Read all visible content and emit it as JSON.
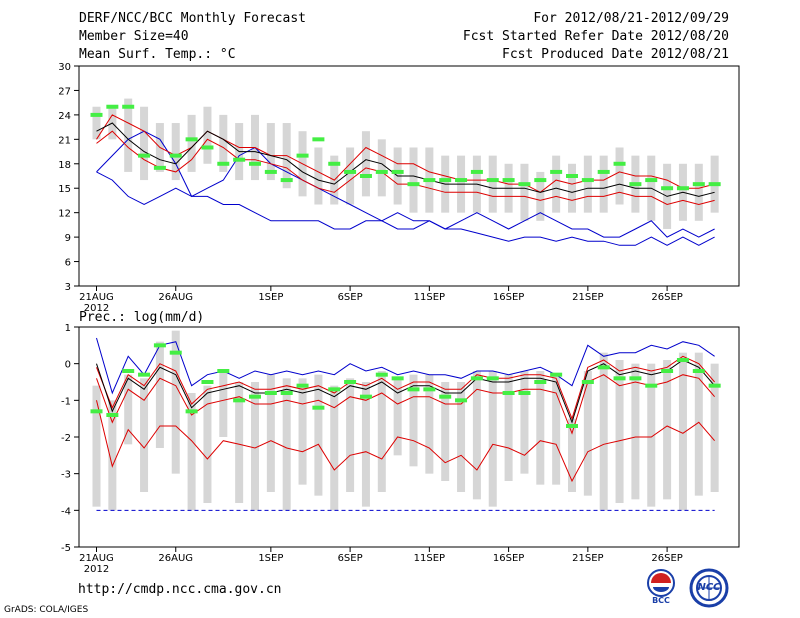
{
  "header": {
    "title": "DERF/NCC/BCC Monthly Forecast",
    "member": "Member Size=40",
    "variable": "Mean Surf. Temp.: °C",
    "for_range": "For 2012/08/21-2012/09/29",
    "start": "Fcst Started Refer Date 2012/08/20",
    "produced": "Fcst Produced Date 2012/08/21"
  },
  "footer": {
    "url": "http://cmdp.ncc.cma.gov.cn",
    "grads": "GrADS: COLA/IGES",
    "logo_bcc": "BCC",
    "logo_ncc": "NCC"
  },
  "colors": {
    "max": "#0000cc",
    "pct": "#dd0000",
    "mean": "#000000",
    "obs": "#44ee44",
    "box": "#d6d6d6"
  },
  "chart_data": [
    {
      "type": "ensemble-box",
      "title": "Mean Surf. Temp.: °C",
      "ylim": [
        3,
        30
      ],
      "yticks": [
        3,
        6,
        9,
        12,
        15,
        18,
        21,
        24,
        27,
        30
      ],
      "xtick_labels": [
        "21AUG",
        "26AUG",
        "1SEP",
        "6SEP",
        "11SEP",
        "16SEP",
        "21SEP",
        "26SEP"
      ],
      "xtick_days": [
        0,
        5,
        11,
        16,
        21,
        26,
        31,
        36
      ],
      "year_label": "2012",
      "series": {
        "max": [
          17,
          19,
          21,
          22,
          21,
          18,
          14,
          15,
          16,
          19,
          20,
          18,
          17,
          16,
          15,
          14,
          13,
          12,
          11,
          12,
          11,
          11,
          10,
          11,
          12,
          11,
          10,
          11,
          12,
          11,
          10,
          10,
          9,
          9,
          10,
          11,
          9,
          10,
          9,
          10
        ],
        "upper": [
          21,
          24,
          23,
          22,
          20,
          19,
          20,
          22,
          21,
          20,
          20,
          19,
          19,
          18,
          17,
          16,
          18,
          20,
          19,
          18,
          18,
          17,
          16.5,
          16,
          16,
          16,
          15.5,
          15.5,
          14.5,
          16,
          15.5,
          16,
          16,
          17,
          16.5,
          16.5,
          16,
          15,
          15,
          15.5
        ],
        "mean": [
          22,
          23,
          21,
          19.5,
          18.5,
          18,
          20,
          22,
          21,
          19.5,
          19.5,
          19,
          18.5,
          17,
          16,
          15.5,
          17,
          18.5,
          18,
          16.5,
          16.5,
          16,
          15.5,
          15.5,
          15.5,
          15,
          15,
          15,
          14.5,
          15,
          14.5,
          15,
          15,
          15.5,
          15,
          15,
          14,
          14.5,
          14,
          14.5
        ],
        "lower": [
          20.5,
          22,
          20,
          18.5,
          17.5,
          17,
          18.5,
          21,
          20,
          18.5,
          18.5,
          18,
          17.5,
          16,
          15,
          14.5,
          16,
          17.5,
          17,
          15.5,
          15.5,
          15,
          14.5,
          14.5,
          14.5,
          14,
          14,
          14,
          13.5,
          14,
          13.5,
          14,
          14,
          14.5,
          14,
          14,
          13,
          13.5,
          13,
          13.5
        ],
        "min": [
          17,
          16,
          14,
          13,
          14,
          15,
          14,
          14,
          13,
          13,
          12,
          11,
          11,
          11,
          11,
          10,
          10,
          11,
          11,
          10,
          10,
          11,
          10,
          10,
          9.5,
          9,
          8.5,
          9,
          9,
          8.5,
          9,
          8.5,
          8.5,
          8,
          8,
          9,
          8,
          9,
          8,
          9
        ],
        "box_top": [
          25,
          25,
          26,
          25,
          23,
          23,
          24,
          25,
          24,
          23,
          24,
          23,
          23,
          22,
          20,
          19,
          20,
          22,
          21,
          20,
          20,
          20,
          19,
          19,
          19,
          19,
          18,
          18,
          17,
          19,
          18,
          19,
          19,
          20,
          19,
          19,
          18,
          18,
          18,
          19
        ],
        "box_bottom": [
          21,
          21,
          17,
          16,
          17,
          16,
          17,
          18,
          17,
          16,
          16,
          16,
          15,
          14,
          13,
          13,
          13,
          14,
          14,
          13,
          12,
          12,
          12,
          12,
          12,
          12,
          12,
          11,
          11,
          12,
          12,
          12,
          12,
          13,
          12,
          11,
          10,
          11,
          11,
          12
        ],
        "observed": [
          24,
          25,
          25,
          19,
          17.5,
          19,
          21,
          20,
          18,
          18.5,
          18,
          17,
          16,
          19,
          21,
          18,
          17,
          16.5,
          17,
          17,
          15.5,
          16,
          16,
          16,
          17,
          16,
          16,
          15.5,
          16,
          17,
          16.5,
          16,
          17,
          18,
          15.5,
          16,
          15,
          15,
          15.5,
          15.5
        ]
      }
    },
    {
      "type": "ensemble-box",
      "title": "Prec.: log(mm/d)",
      "ylim": [
        -5,
        1
      ],
      "yticks": [
        -5,
        -4,
        -3,
        -2,
        -1,
        0,
        1
      ],
      "xtick_labels": [
        "21AUG",
        "26AUG",
        "1SEP",
        "6SEP",
        "11SEP",
        "16SEP",
        "21SEP",
        "26SEP"
      ],
      "xtick_days": [
        0,
        5,
        11,
        16,
        21,
        26,
        31,
        36
      ],
      "year_label": "2012",
      "series": {
        "max": [
          0.7,
          -0.8,
          0.2,
          -0.3,
          0.5,
          0.6,
          -0.6,
          -0.3,
          -0.2,
          -0.4,
          -0.2,
          -0.3,
          -0.2,
          -0.3,
          -0.2,
          -0.3,
          0.0,
          -0.2,
          -0.1,
          -0.3,
          -0.2,
          -0.3,
          -0.3,
          -0.4,
          -0.2,
          -0.2,
          -0.3,
          -0.2,
          -0.1,
          -0.3,
          -0.6,
          0.5,
          0.2,
          0.3,
          0.3,
          0.5,
          0.4,
          0.6,
          0.5,
          0.2
        ],
        "mean": [
          0.0,
          -1.3,
          -0.4,
          -0.7,
          -0.1,
          -0.3,
          -1.2,
          -0.8,
          -0.7,
          -0.6,
          -0.8,
          -0.8,
          -0.7,
          -0.8,
          -0.7,
          -0.9,
          -0.6,
          -0.7,
          -0.5,
          -0.8,
          -0.6,
          -0.6,
          -0.8,
          -0.8,
          -0.4,
          -0.5,
          -0.5,
          -0.4,
          -0.4,
          -0.5,
          -1.6,
          -0.2,
          0.0,
          -0.3,
          -0.2,
          -0.3,
          -0.2,
          0.1,
          -0.1,
          -0.6
        ],
        "upper": [
          -0.1,
          -1.2,
          -0.3,
          -0.6,
          0.0,
          -0.2,
          -1.1,
          -0.7,
          -0.6,
          -0.5,
          -0.7,
          -0.7,
          -0.6,
          -0.7,
          -0.6,
          -0.8,
          -0.5,
          -0.6,
          -0.4,
          -0.7,
          -0.5,
          -0.5,
          -0.7,
          -0.7,
          -0.3,
          -0.4,
          -0.4,
          -0.3,
          -0.3,
          -0.4,
          -1.5,
          -0.1,
          0.1,
          -0.2,
          -0.1,
          -0.2,
          -0.1,
          0.2,
          0.0,
          -0.5
        ],
        "lower": [
          -0.4,
          -1.6,
          -0.7,
          -1.0,
          -0.4,
          -0.6,
          -1.4,
          -1.1,
          -1.0,
          -0.9,
          -1.1,
          -1.1,
          -1.0,
          -1.1,
          -1.0,
          -1.2,
          -0.9,
          -1.0,
          -0.8,
          -1.1,
          -0.9,
          -0.9,
          -1.1,
          -1.1,
          -0.7,
          -0.8,
          -0.8,
          -0.7,
          -0.7,
          -0.8,
          -1.9,
          -0.5,
          -0.3,
          -0.6,
          -0.5,
          -0.6,
          -0.5,
          -0.3,
          -0.4,
          -0.9
        ],
        "min": [
          -1.0,
          -2.8,
          -1.8,
          -2.3,
          -1.7,
          -1.7,
          -2.1,
          -2.6,
          -2.1,
          -2.2,
          -2.3,
          -2.1,
          -2.3,
          -2.4,
          -2.2,
          -2.9,
          -2.5,
          -2.4,
          -2.6,
          -2.0,
          -2.1,
          -2.3,
          -2.7,
          -2.5,
          -2.9,
          -2.2,
          -2.3,
          -2.5,
          -2.1,
          -2.2,
          -3.2,
          -2.4,
          -2.2,
          -2.1,
          -2.0,
          -2.0,
          -1.7,
          -1.9,
          -1.6,
          -2.1
        ],
        "box_top": [
          -0.6,
          -1.0,
          -0.3,
          -0.4,
          0.6,
          0.9,
          -0.8,
          -0.6,
          -0.2,
          -0.5,
          -0.5,
          -0.3,
          -0.4,
          -0.4,
          -0.3,
          -0.6,
          -0.4,
          -0.5,
          -0.2,
          -0.4,
          -0.3,
          -0.3,
          -0.5,
          -0.5,
          -0.2,
          -0.2,
          -0.3,
          -0.2,
          -0.2,
          -0.3,
          -1.5,
          -0.2,
          0.3,
          0.1,
          0.0,
          0.0,
          0.1,
          0.3,
          0.3,
          0.0
        ],
        "box_bottom": [
          -3.9,
          -4.0,
          -2.2,
          -3.5,
          -2.3,
          -3.0,
          -4.0,
          -3.8,
          -2.0,
          -3.8,
          -4.0,
          -3.5,
          -4.0,
          -3.3,
          -3.6,
          -4.0,
          -3.5,
          -3.9,
          -3.5,
          -2.5,
          -2.8,
          -3.0,
          -3.2,
          -3.5,
          -3.7,
          -3.9,
          -3.2,
          -3.0,
          -3.3,
          -3.3,
          -3.5,
          -3.6,
          -4.0,
          -3.8,
          -3.7,
          -3.9,
          -3.7,
          -4.0,
          -3.6,
          -3.5
        ],
        "observed": [
          -1.3,
          -1.4,
          -0.2,
          -0.3,
          0.5,
          0.3,
          -1.3,
          -0.5,
          -0.2,
          -1.0,
          -0.9,
          -0.8,
          -0.8,
          -0.6,
          -1.2,
          -0.7,
          -0.5,
          -0.9,
          -0.3,
          -0.4,
          -0.7,
          -0.7,
          -0.9,
          -1.0,
          -0.4,
          -0.4,
          -0.8,
          -0.8,
          -0.5,
          -0.3,
          -1.7,
          -0.5,
          -0.1,
          -0.4,
          -0.4,
          -0.6,
          -0.2,
          0.1,
          -0.2,
          -0.6
        ],
        "floor": -4.0
      }
    }
  ]
}
